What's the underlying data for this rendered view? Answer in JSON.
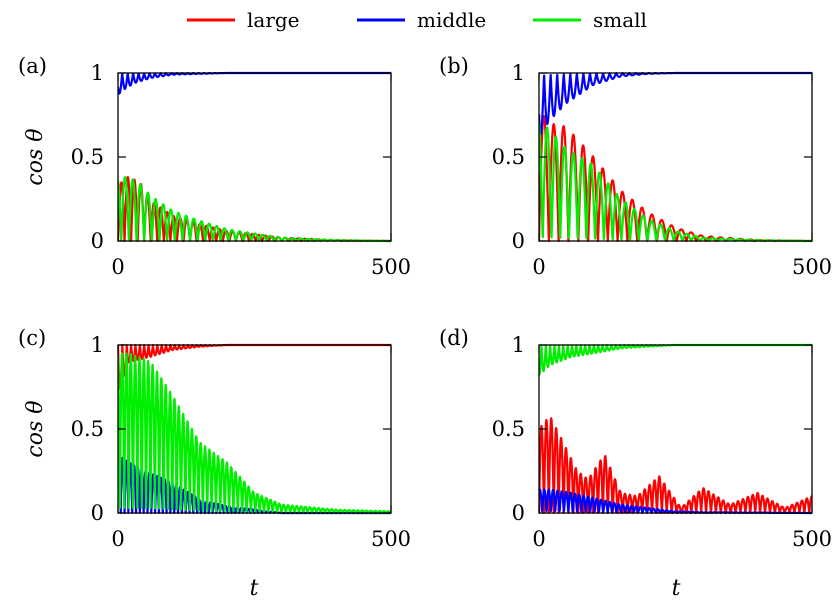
{
  "legend": [
    {
      "name": "large",
      "color": "#ff0000"
    },
    {
      "name": "middle",
      "color": "#0000ff"
    },
    {
      "name": "small",
      "color": "#00ee00"
    }
  ],
  "xlabel": "t",
  "ylabel": "cos θ",
  "chart_data": [
    {
      "type": "line",
      "panel_label": "(a)",
      "xlim": [
        0,
        500
      ],
      "ylim": [
        0,
        1
      ],
      "xticks": [
        0,
        500
      ],
      "yticks": [
        0,
        0.5,
        1
      ],
      "series": [
        {
          "name": "large",
          "color": "#ff0000",
          "envelope": {
            "x": [
              0,
              10,
              20,
              40,
              60,
              100,
              150,
              200,
              300,
              400,
              500
            ],
            "y": [
              0.3,
              0.38,
              0.38,
              0.35,
              0.24,
              0.15,
              0.1,
              0.06,
              0.02,
              0.005,
              0.0
            ]
          },
          "period": 12
        },
        {
          "name": "middle",
          "color": "#0000ff",
          "envelope": {
            "x": [
              0,
              10,
              30,
              60,
              100,
              150,
              200,
              300,
              500
            ],
            "y": [
              0.87,
              0.9,
              0.94,
              0.97,
              0.99,
              0.995,
              1.0,
              1.0,
              1.0
            ]
          },
          "period": 10
        },
        {
          "name": "small",
          "color": "#00ee00",
          "envelope": {
            "x": [
              0,
              10,
              20,
              40,
              60,
              100,
              150,
              200,
              300,
              400,
              500
            ],
            "y": [
              0.37,
              0.38,
              0.38,
              0.34,
              0.27,
              0.18,
              0.12,
              0.07,
              0.02,
              0.005,
              0.0
            ]
          },
          "period": 14
        }
      ]
    },
    {
      "type": "line",
      "panel_label": "(b)",
      "xlim": [
        0,
        500
      ],
      "ylim": [
        0,
        1
      ],
      "xticks": [
        0,
        500
      ],
      "yticks": [
        0,
        0.5,
        1
      ],
      "series": [
        {
          "name": "large",
          "color": "#ff0000",
          "envelope": {
            "x": [
              0,
              20,
              50,
              100,
              150,
              200,
              250,
              300,
              400,
              500
            ],
            "y": [
              0.78,
              0.7,
              0.68,
              0.5,
              0.3,
              0.17,
              0.08,
              0.03,
              0.005,
              0.0
            ]
          },
          "period": 18
        },
        {
          "name": "middle",
          "color": "#0000ff",
          "envelope": {
            "x": [
              0,
              20,
              50,
              100,
              150,
              200,
              250,
              300,
              500
            ],
            "y": [
              0.62,
              0.72,
              0.82,
              0.93,
              0.98,
              0.995,
              1.0,
              1.0,
              1.0
            ]
          },
          "period": 12
        },
        {
          "name": "small",
          "color": "#00ee00",
          "envelope": {
            "x": [
              0,
              20,
              50,
              100,
              150,
              200,
              250,
              300,
              400,
              500
            ],
            "y": [
              0.72,
              0.66,
              0.55,
              0.45,
              0.25,
              0.13,
              0.06,
              0.02,
              0.005,
              0.0
            ]
          },
          "period": 16
        }
      ]
    },
    {
      "type": "line",
      "panel_label": "(c)",
      "xlim": [
        0,
        500
      ],
      "ylim": [
        0,
        1
      ],
      "xticks": [
        0,
        500
      ],
      "yticks": [
        0,
        0.5,
        1
      ],
      "series": [
        {
          "name": "large",
          "color": "#ff0000",
          "envelope": {
            "x": [
              0,
              20,
              60,
              100,
              150,
              200,
              250,
              300,
              500
            ],
            "y": [
              0.7,
              0.9,
              0.93,
              0.97,
              0.99,
              1.0,
              1.0,
              1.0,
              1.0
            ]
          },
          "period": 8
        },
        {
          "name": "middle",
          "color": "#0000ff",
          "envelope": {
            "x": [
              0,
              20,
              50,
              100,
              150,
              200,
              250,
              300,
              500
            ],
            "y": [
              0.35,
              0.3,
              0.25,
              0.18,
              0.08,
              0.04,
              0.02,
              0.0,
              0.0
            ]
          },
          "period": 7
        },
        {
          "name": "small",
          "color": "#00ee00",
          "envelope": {
            "x": [
              0,
              20,
              60,
              100,
              150,
              200,
              250,
              300,
              400,
              500
            ],
            "y": [
              0.95,
              0.95,
              0.9,
              0.7,
              0.42,
              0.3,
              0.12,
              0.05,
              0.02,
              0.01
            ]
          },
          "period": 8
        }
      ]
    },
    {
      "type": "line",
      "panel_label": "(d)",
      "xlim": [
        0,
        500
      ],
      "ylim": [
        0,
        1
      ],
      "xticks": [
        0,
        500
      ],
      "yticks": [
        0,
        0.5,
        1
      ],
      "series": [
        {
          "name": "large",
          "color": "#ff0000",
          "envelope": {
            "x": [
              0,
              20,
              40,
              70,
              90,
              120,
              150,
              180,
              220,
              260,
              300,
              350,
              400,
              450,
              500
            ],
            "y": [
              0.5,
              0.58,
              0.45,
              0.25,
              0.2,
              0.35,
              0.12,
              0.1,
              0.22,
              0.03,
              0.15,
              0.05,
              0.12,
              0.03,
              0.1
            ]
          },
          "period": 9
        },
        {
          "name": "middle",
          "color": "#0000ff",
          "envelope": {
            "x": [
              0,
              20,
              60,
              100,
              150,
              200,
              250,
              300,
              500
            ],
            "y": [
              0.14,
              0.14,
              0.12,
              0.09,
              0.05,
              0.03,
              0.01,
              0.005,
              0.0
            ]
          },
          "period": 8
        },
        {
          "name": "small",
          "color": "#00ee00",
          "envelope": {
            "x": [
              0,
              20,
              60,
              100,
              150,
              200,
              250,
              500
            ],
            "y": [
              0.82,
              0.88,
              0.93,
              0.95,
              0.98,
              0.99,
              1.0,
              1.0
            ]
          },
          "period": 8
        }
      ]
    }
  ]
}
